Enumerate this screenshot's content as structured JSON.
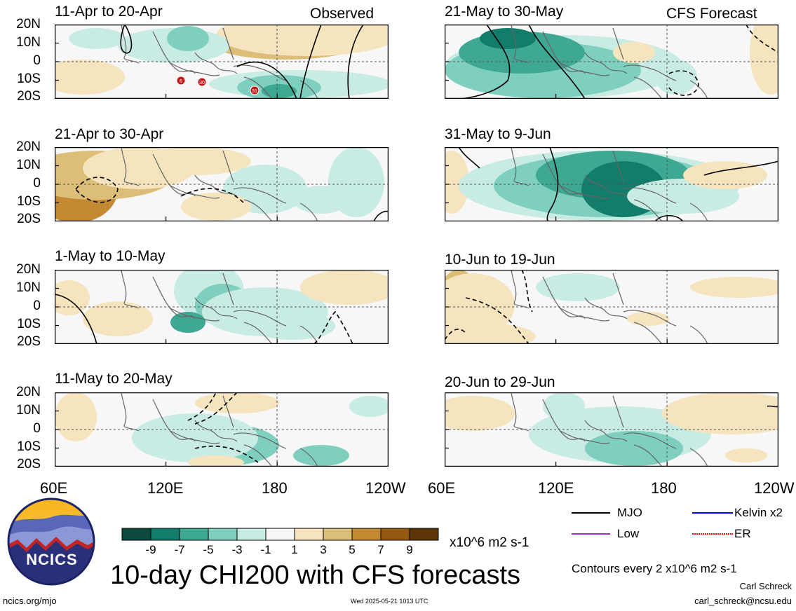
{
  "titles": {
    "main": "10-day CHI200 with CFS forecasts",
    "observed": "Observed",
    "forecast": "CFS Forecast"
  },
  "panels": [
    {
      "period": "11-Apr to 20-Apr",
      "kind": "observed"
    },
    {
      "period": "21-Apr to 30-Apr",
      "kind": "observed"
    },
    {
      "period": "1-May to 10-May",
      "kind": "observed"
    },
    {
      "period": "11-May to 20-May",
      "kind": "observed"
    },
    {
      "period": "21-May to 30-May",
      "kind": "forecast"
    },
    {
      "period": "31-May to 9-Jun",
      "kind": "forecast"
    },
    {
      "period": "10-Jun to 19-Jun",
      "kind": "forecast"
    },
    {
      "period": "20-Jun to 29-Jun",
      "kind": "forecast"
    }
  ],
  "chart_data": {
    "type": "heatmap",
    "variable": "CHI200",
    "lat_ticks": [
      "20N",
      "10N",
      "0",
      "10S",
      "20S"
    ],
    "lon_ticks": [
      "60E",
      "120E",
      "180",
      "120W"
    ],
    "lat_range": [
      -20,
      20
    ],
    "lon_range_deg_east": [
      60,
      240
    ],
    "colorbar": {
      "labels": [
        "-9",
        "-7",
        "-5",
        "-3",
        "-1",
        "1",
        "3",
        "5",
        "7",
        "9"
      ],
      "colors": [
        "#0b4a3c",
        "#137c6a",
        "#3fa893",
        "#7fcfbe",
        "#c8ece4",
        "#f7f7f7",
        "#f5e4bd",
        "#ddbe78",
        "#c48a33",
        "#965812",
        "#5e3409"
      ],
      "units": "x10^6 m2 s-1"
    },
    "contour_interval": "Contours every 2 x10^6 m2 s-1",
    "legend": [
      {
        "label": "MJO",
        "color": "#000000",
        "style": "solid"
      },
      {
        "label": "Kelvin x2",
        "color": "#0000ff",
        "style": "solid"
      },
      {
        "label": "Low",
        "color": "#9933cc",
        "style": "solid"
      },
      {
        "label": "ER",
        "color": "#ff0000",
        "style": "dotted"
      }
    ],
    "storm_markers": [
      "6",
      "30",
      "31"
    ]
  },
  "footer": {
    "site": "ncics.org/mjo",
    "timestamp": "Wed 2025-05-21 1013 UTC",
    "author": "Carl Schreck",
    "email": "carl_schreck@ncsu.edu",
    "logo_text": "NCICS"
  }
}
